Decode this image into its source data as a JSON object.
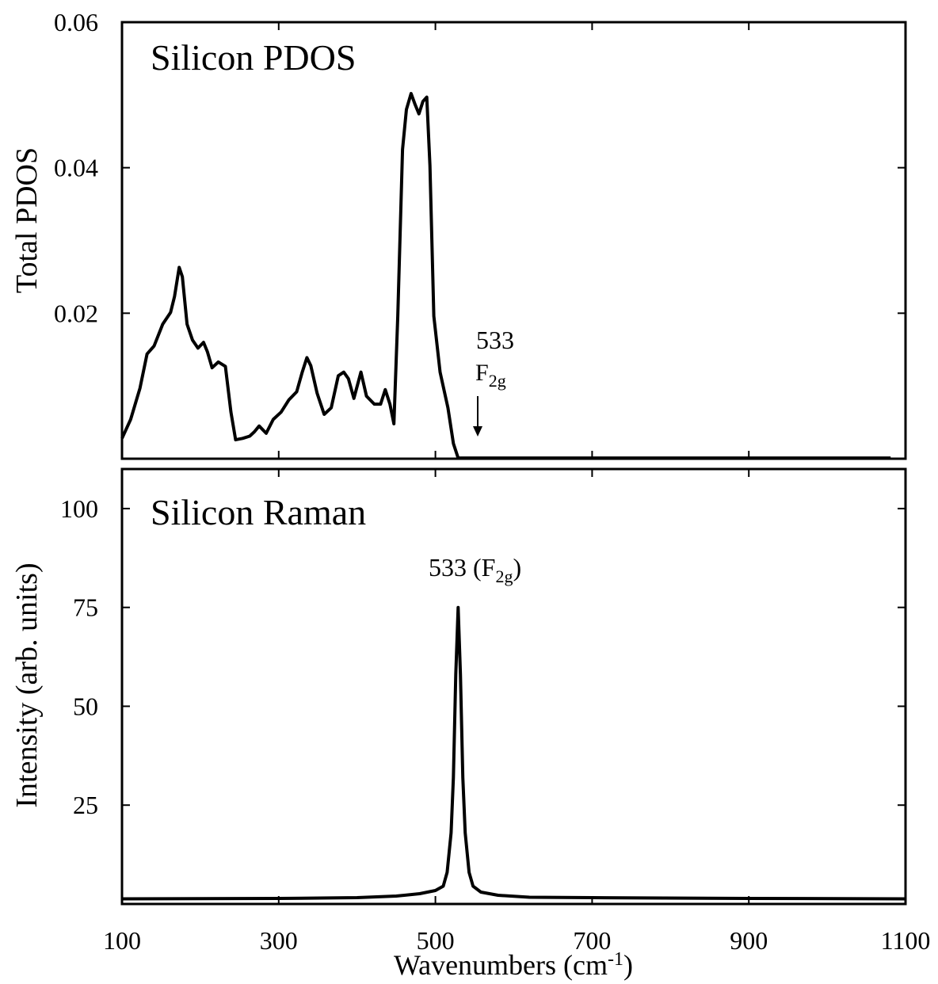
{
  "chart_data": [
    {
      "type": "line",
      "title": "Silicon PDOS",
      "y_label": "Total PDOS",
      "color": "#000000",
      "x": [
        100,
        111,
        123,
        132,
        141,
        152,
        162,
        167,
        173,
        177,
        183,
        190,
        197,
        204,
        209,
        215,
        223,
        232,
        239,
        245,
        254,
        263,
        269,
        275,
        284,
        293,
        303,
        313,
        323,
        330,
        336,
        341,
        349,
        358,
        367,
        376,
        383,
        389,
        396,
        405,
        412,
        422,
        430,
        436,
        442,
        447,
        452,
        458,
        463,
        469,
        474,
        479,
        484,
        489,
        493,
        498,
        506,
        516,
        523,
        529,
        541,
        602,
        1081
      ],
      "values": [
        0.0028,
        0.0054,
        0.0097,
        0.0144,
        0.0155,
        0.0185,
        0.0201,
        0.0223,
        0.0263,
        0.025,
        0.0185,
        0.0163,
        0.0152,
        0.016,
        0.0147,
        0.0125,
        0.0133,
        0.0127,
        0.0064,
        0.0026,
        0.0028,
        0.0031,
        0.0037,
        0.0045,
        0.0035,
        0.0054,
        0.0064,
        0.0081,
        0.0092,
        0.0119,
        0.0139,
        0.0128,
        0.009,
        0.0061,
        0.007,
        0.0114,
        0.0119,
        0.011,
        0.0083,
        0.0119,
        0.0086,
        0.0075,
        0.0075,
        0.0095,
        0.0075,
        0.0048,
        0.0196,
        0.0425,
        0.048,
        0.0502,
        0.0487,
        0.0474,
        0.0491,
        0.0497,
        0.0403,
        0.0196,
        0.0119,
        0.007,
        0.0021,
        0.0001,
        0.0001,
        0.0001,
        0.0001
      ],
      "xlim": [
        100,
        1100
      ],
      "xticks": [
        300,
        500,
        700,
        900
      ],
      "ylim": [
        0,
        0.06
      ],
      "yticks": [
        0.02,
        0.04,
        0.06
      ],
      "annotation": [
        "533",
        "F",
        "2g"
      ]
    },
    {
      "type": "line",
      "title": "Silicon Raman",
      "y_label": "Intensity (arb. units)",
      "color": "#000000",
      "x": [
        100,
        300,
        400,
        450,
        480,
        500,
        510,
        515,
        520,
        523,
        526,
        529,
        532,
        535,
        538,
        543,
        548,
        558,
        580,
        620,
        700,
        900,
        1100
      ],
      "values": [
        1.3,
        1.4,
        1.6,
        2,
        2.6,
        3.4,
        4.5,
        8,
        18,
        32,
        58,
        75,
        58,
        32,
        18,
        8,
        4.5,
        3,
        2.2,
        1.7,
        1.6,
        1.4,
        1.3
      ],
      "xlim": [
        100,
        1100
      ],
      "xticks": [
        100,
        300,
        500,
        700,
        900,
        1100
      ],
      "ylim": [
        0,
        110
      ],
      "yticks": [
        25,
        50,
        75,
        100
      ],
      "x_label": [
        "Wavenumbers (cm",
        "-1",
        ")"
      ],
      "annotation": [
        "533 (F",
        "2g",
        ")"
      ]
    }
  ]
}
